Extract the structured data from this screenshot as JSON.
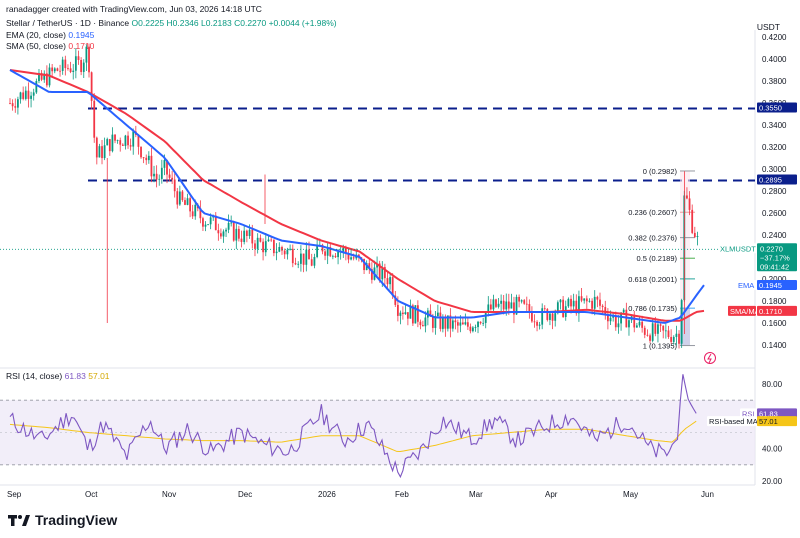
{
  "header": {
    "attribution": "ranadagger created with TradingView.com, Jun 03, 2026 14:18 UTC"
  },
  "legend": {
    "symbol": "Stellar / TetherUS · 1D · Binance",
    "ohlc": "O0.2225 H0.2346 L0.2183 C0.2270 +0.0044 (+1.98%)",
    "ema_label": "EMA (20, close)",
    "ema_value": "0.1945",
    "sma_label": "SMA (50, close)",
    "sma_value": "0.1710"
  },
  "currency": "USDT",
  "rsi_legend": {
    "label": "RSI (14, close)",
    "rsi_value": "61.83",
    "ma_value": "57.01"
  },
  "badges": {
    "price": {
      "symbol": "XLMUSDT",
      "value": "0.2270",
      "change": "−37.17%",
      "countdown": "09:41:42"
    },
    "ema": {
      "label": "EMA",
      "value": "0.1945"
    },
    "sma": {
      "label": "SMA/MA",
      "value": "0.1710"
    },
    "level1": "0.3550",
    "level2": "0.2895",
    "rsi": {
      "label": "RSI",
      "value": "61.83"
    },
    "rsi_ma": {
      "label": "RSI-based MA",
      "value": "57.01"
    }
  },
  "footer": {
    "brand": "TradingView"
  },
  "colors": {
    "up": "#089981",
    "down": "#f23645",
    "ema": "#2962ff",
    "sma": "#f23645",
    "rsi": "#7e57c2",
    "rsi_ma": "#f5c518",
    "level": "#0b1f8c"
  },
  "chart_data": [
    {
      "type": "candlestick",
      "title": "Stellar / TetherUS · 1D · Binance",
      "ylim": [
        0.13,
        0.43
      ],
      "y_ticks": [
        "0.4200",
        "0.4000",
        "0.3800",
        "0.3600",
        "0.3400",
        "0.3200",
        "0.3000",
        "0.2800",
        "0.2600",
        "0.2400",
        "0.2200",
        "0.2000",
        "0.1800",
        "0.1600",
        "0.1400"
      ],
      "x_ticks": [
        "Sep",
        "Oct",
        "Nov",
        "Dec",
        "2026",
        "Feb",
        "Mar",
        "Apr",
        "May",
        "Jun"
      ],
      "close_path": {
        "months": [
          0,
          0.3,
          0.6,
          0.9,
          1.0,
          1.1,
          1.3,
          1.6,
          1.9,
          2.0,
          2.2,
          2.5,
          2.8,
          3.0,
          3.3,
          3.6,
          3.9,
          4.0,
          4.3,
          4.6,
          4.9,
          5.0,
          5.3,
          5.6,
          5.9,
          6.0,
          6.3,
          6.6,
          6.9,
          7.0,
          7.3,
          7.6,
          7.9,
          8.0,
          8.2,
          8.4,
          8.6,
          8.7,
          8.75,
          8.85,
          8.95
        ],
        "values": [
          0.36,
          0.375,
          0.39,
          0.395,
          0.41,
          0.31,
          0.325,
          0.33,
          0.29,
          0.3,
          0.27,
          0.255,
          0.245,
          0.24,
          0.23,
          0.225,
          0.215,
          0.23,
          0.225,
          0.21,
          0.2,
          0.175,
          0.165,
          0.16,
          0.155,
          0.16,
          0.175,
          0.175,
          0.165,
          0.17,
          0.175,
          0.18,
          0.16,
          0.165,
          0.155,
          0.15,
          0.15,
          0.15,
          0.28,
          0.25,
          0.227
        ]
      },
      "ema": {
        "label": "EMA (20, close)",
        "last": 0.1945,
        "months": [
          0,
          0.5,
          1.0,
          1.5,
          2.0,
          2.5,
          3.0,
          3.5,
          4.0,
          4.5,
          5.0,
          5.5,
          6.0,
          6.5,
          7.0,
          7.5,
          8.0,
          8.5,
          8.7,
          8.9,
          9.0
        ],
        "values": [
          0.39,
          0.37,
          0.37,
          0.34,
          0.31,
          0.26,
          0.25,
          0.235,
          0.23,
          0.22,
          0.18,
          0.165,
          0.165,
          0.17,
          0.17,
          0.17,
          0.165,
          0.16,
          0.165,
          0.185,
          0.1945
        ]
      },
      "sma": {
        "label": "SMA (50, close)",
        "last": 0.171,
        "months": [
          0,
          0.5,
          1.0,
          1.5,
          2.0,
          2.5,
          3.0,
          3.5,
          4.0,
          4.5,
          5.0,
          5.5,
          6.0,
          6.5,
          7.0,
          7.5,
          8.0,
          8.5,
          8.7,
          8.9,
          9.0
        ],
        "values": [
          0.39,
          0.385,
          0.37,
          0.35,
          0.325,
          0.29,
          0.27,
          0.25,
          0.235,
          0.225,
          0.2,
          0.18,
          0.17,
          0.17,
          0.17,
          0.172,
          0.168,
          0.162,
          0.162,
          0.17,
          0.171
        ]
      },
      "horizontal_levels": [
        0.355,
        0.2895
      ],
      "last_price": 0.227,
      "fib_levels": [
        {
          "label": "0 (0.2982)",
          "value": 0.2982
        },
        {
          "label": "0.236 (0.2607)",
          "value": 0.2607
        },
        {
          "label": "0.382 (0.2376)",
          "value": 0.2376
        },
        {
          "label": "0.5 (0.2189)",
          "value": 0.2189
        },
        {
          "label": "0.618 (0.2001)",
          "value": 0.2001
        },
        {
          "label": "0.786 (0.1735)",
          "value": 0.1735
        },
        {
          "label": "1 (0.1395)",
          "value": 0.1395
        }
      ]
    },
    {
      "type": "line",
      "title": "RSI (14, close)",
      "ylim": [
        15,
        95
      ],
      "y_ticks": [
        "80.00",
        "40.00",
        "20.00"
      ],
      "band": [
        30,
        70
      ],
      "rsi": {
        "months": [
          0,
          0.4,
          0.8,
          1.0,
          1.2,
          1.5,
          1.8,
          2.0,
          2.3,
          2.6,
          3.0,
          3.3,
          3.6,
          4.0,
          4.3,
          4.6,
          5.0,
          5.3,
          5.6,
          6.0,
          6.3,
          6.6,
          7.0,
          7.3,
          7.6,
          8.0,
          8.3,
          8.5,
          8.65,
          8.72,
          8.8,
          8.9
        ],
        "values": [
          58,
          45,
          62,
          40,
          55,
          35,
          58,
          40,
          52,
          38,
          50,
          42,
          38,
          62,
          45,
          55,
          25,
          38,
          58,
          46,
          58,
          45,
          55,
          60,
          45,
          58,
          40,
          36,
          45,
          88,
          70,
          61.83
        ]
      },
      "rsi_ma": {
        "months": [
          0,
          0.5,
          1.0,
          1.5,
          2.0,
          2.5,
          3.0,
          3.5,
          4.0,
          4.5,
          5.0,
          5.5,
          6.0,
          6.5,
          7.0,
          7.5,
          8.0,
          8.4,
          8.6,
          8.75,
          8.9
        ],
        "values": [
          55,
          53,
          50,
          48,
          46,
          45,
          45,
          44,
          48,
          48,
          38,
          42,
          48,
          50,
          52,
          52,
          48,
          45,
          44,
          52,
          57.01
        ]
      }
    }
  ]
}
